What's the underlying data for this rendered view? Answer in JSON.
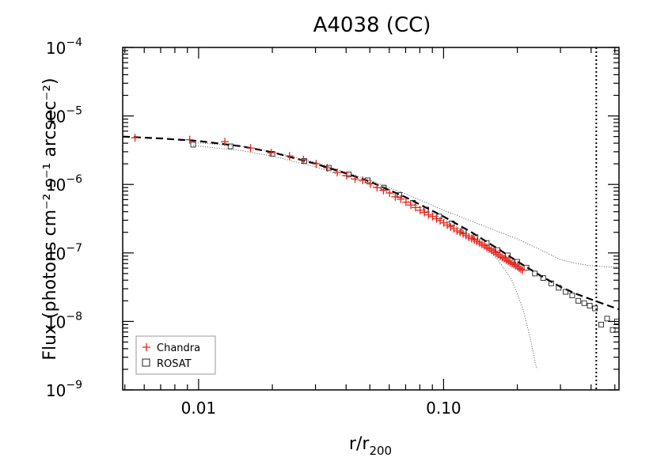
{
  "chart_data": {
    "type": "scatter",
    "title": "A4038 (CC)",
    "xlabel": {
      "main": "r/r",
      "sub": "200"
    },
    "ylabel": "Flux (photons cm⁻² s⁻¹ arcsec⁻²)",
    "x_scale": "log",
    "y_scale": "log",
    "xlim": [
      0.0049,
      0.52
    ],
    "ylim": [
      1e-09,
      0.0001
    ],
    "x_ticks": [
      {
        "value": 0.01,
        "label": "0.01"
      },
      {
        "value": 0.1,
        "label": "0.10"
      }
    ],
    "y_ticks": [
      {
        "value": 1e-09,
        "base": "10",
        "exp": "−9"
      },
      {
        "value": 1e-08,
        "base": "10",
        "exp": "−8"
      },
      {
        "value": 1e-07,
        "base": "10",
        "exp": "−7"
      },
      {
        "value": 1e-06,
        "base": "10",
        "exp": "−6"
      },
      {
        "value": 1e-05,
        "base": "10",
        "exp": "−5"
      },
      {
        "value": 0.0001,
        "base": "10",
        "exp": "−4"
      }
    ],
    "legend": {
      "placement": "bottom-left",
      "entries": [
        {
          "label": "Chandra",
          "marker": "plus",
          "color": "#e8241c"
        },
        {
          "label": "ROSAT",
          "marker": "square",
          "color": "#222222"
        }
      ]
    },
    "vertical_line": {
      "x": 0.42,
      "style": "dotted"
    },
    "series": [
      {
        "name": "Chandra",
        "marker": "plus",
        "color": "#e8241c",
        "x": [
          0.0055,
          0.0092,
          0.0128,
          0.0163,
          0.0198,
          0.0235,
          0.0268,
          0.0302,
          0.0335,
          0.0368,
          0.0402,
          0.0435,
          0.0468,
          0.0502,
          0.0535,
          0.0568,
          0.0602,
          0.0635,
          0.0668,
          0.0702,
          0.0735,
          0.0768,
          0.0802,
          0.0835,
          0.0868,
          0.0902,
          0.0935,
          0.0968,
          0.1002,
          0.1035,
          0.1068,
          0.1102,
          0.1135,
          0.1168,
          0.1202,
          0.1235,
          0.1268,
          0.1302,
          0.1335,
          0.1368,
          0.1402,
          0.1435,
          0.1468,
          0.1502,
          0.1535,
          0.1568,
          0.1602,
          0.1635,
          0.1668,
          0.1702,
          0.1735,
          0.1768,
          0.1802,
          0.1835,
          0.1868,
          0.1902,
          0.1935,
          0.1968,
          0.2002,
          0.2035,
          0.2068,
          0.2102
        ],
        "y": [
          4.8e-06,
          4.5e-06,
          4.2e-06,
          3.4e-06,
          2.9e-06,
          2.6e-06,
          2.3e-06,
          2e-06,
          1.75e-06,
          1.5e-06,
          1.35e-06,
          1.2e-06,
          1.15e-06,
          1.02e-06,
          9e-07,
          8.2e-07,
          7.5e-07,
          6.6e-07,
          6.1e-07,
          5.5e-07,
          5e-07,
          4.6e-07,
          4.2e-07,
          3.9e-07,
          3.6e-07,
          3.4e-07,
          3.15e-07,
          2.95e-07,
          2.75e-07,
          2.55e-07,
          2.4e-07,
          2.25e-07,
          2.1e-07,
          2e-07,
          1.9e-07,
          1.8e-07,
          1.7e-07,
          1.62e-07,
          1.55e-07,
          1.47e-07,
          1.4e-07,
          1.33e-07,
          1.27e-07,
          1.2e-07,
          1.15e-07,
          1.1e-07,
          1.05e-07,
          1e-07,
          9.5e-08,
          9e-08,
          8.6e-08,
          8.3e-08,
          7.9e-08,
          7.6e-08,
          7.3e-08,
          7e-08,
          6.8e-08,
          6.5e-08,
          6.3e-08,
          6e-08,
          5.8e-08,
          5.6e-08
        ]
      },
      {
        "name": "ROSAT",
        "marker": "square",
        "color": "#222222",
        "x": [
          0.0095,
          0.0135,
          0.02,
          0.027,
          0.034,
          0.041,
          0.049,
          0.057,
          0.066,
          0.075,
          0.085,
          0.096,
          0.108,
          0.121,
          0.135,
          0.15,
          0.166,
          0.183,
          0.2,
          0.218,
          0.236,
          0.255,
          0.275,
          0.295,
          0.315,
          0.335,
          0.355,
          0.375,
          0.395,
          0.415,
          0.44,
          0.465,
          0.49,
          0.51
        ],
        "y": [
          3.8e-06,
          3.6e-06,
          2.8e-06,
          2.2e-06,
          1.75e-06,
          1.4e-06,
          1.15e-06,
          9e-07,
          7e-07,
          5.4e-07,
          4.3e-07,
          3.4e-07,
          2.7e-07,
          2.1e-07,
          1.7e-07,
          1.4e-07,
          1.1e-07,
          9.2e-08,
          7.4e-08,
          6.1e-08,
          5e-08,
          4.3e-08,
          3.6e-08,
          3.1e-08,
          2.7e-08,
          2.4e-08,
          2e-08,
          1.85e-08,
          1.7e-08,
          1.55e-08,
          9e-09,
          1.1e-08,
          7.5e-09,
          1e-08
        ]
      }
    ],
    "fit_curve": {
      "style": "dashed",
      "x": [
        0.0049,
        0.007,
        0.01,
        0.015,
        0.02,
        0.03,
        0.04,
        0.05,
        0.07,
        0.1,
        0.13,
        0.17,
        0.2,
        0.25,
        0.3,
        0.35,
        0.4,
        0.45,
        0.52
      ],
      "y": [
        5e-06,
        4.7e-06,
        4.3e-06,
        3.6e-06,
        2.95e-06,
        2e-06,
        1.45e-06,
        1.1e-06,
        6.5e-07,
        3.4e-07,
        2e-07,
        1.1e-07,
        7.5e-08,
        4.6e-08,
        3.2e-08,
        2.5e-08,
        2.1e-08,
        1.8e-08,
        1.5e-08
      ]
    },
    "band_upper": {
      "style": "dotted",
      "x": [
        0.0095,
        0.015,
        0.02,
        0.03,
        0.05,
        0.07,
        0.1,
        0.13,
        0.17,
        0.2,
        0.25,
        0.3,
        0.35,
        0.4,
        0.45,
        0.52
      ],
      "y": [
        4.1e-06,
        3.6e-06,
        3e-06,
        2.1e-06,
        1.15e-06,
        7.3e-07,
        4.2e-07,
        2.9e-07,
        2e-07,
        1.6e-07,
        1.1e-07,
        8e-08,
        7e-08,
        6.5e-08,
        6.3e-08,
        6.2e-08
      ]
    },
    "band_lower": {
      "style": "dotted",
      "x": [
        0.0095,
        0.015,
        0.02,
        0.03,
        0.05,
        0.07,
        0.1,
        0.13,
        0.15,
        0.17,
        0.19,
        0.21,
        0.225,
        0.24
      ],
      "y": [
        3.7e-06,
        3.1e-06,
        2.6e-06,
        1.8e-06,
        1e-06,
        6e-07,
        3.1e-07,
        1.8e-07,
        1.2e-07,
        7.2e-08,
        4e-08,
        1.6e-08,
        6e-09,
        2e-09
      ]
    }
  }
}
